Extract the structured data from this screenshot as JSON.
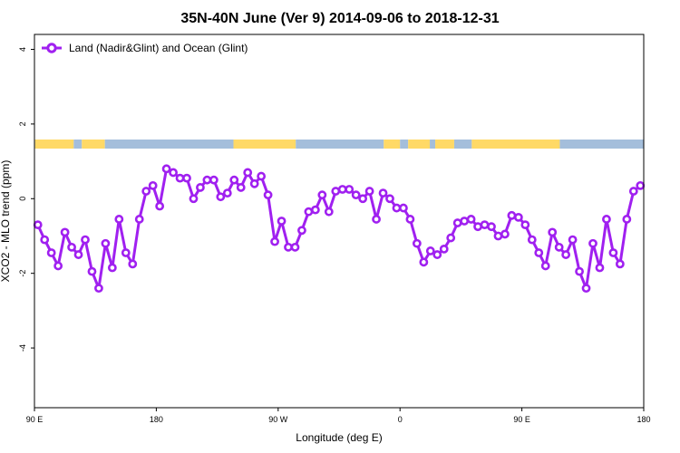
{
  "chart_data": {
    "type": "line",
    "title": "35N-40N June (Ver 9)   2014-09-06 to 2018-12-31",
    "xlabel": "Longitude (deg E)",
    "ylabel": "XCO2 - MLO trend (ppm)",
    "x_ticks": [
      {
        "value": 90,
        "label": "90 E"
      },
      {
        "value": 180,
        "label": "180"
      },
      {
        "value": 270,
        "label": "90 W"
      },
      {
        "value": 360,
        "label": "0"
      },
      {
        "value": 450,
        "label": "90 E"
      },
      {
        "value": 540,
        "label": "180"
      }
    ],
    "y_ticks": [
      {
        "value": 4,
        "label": "4"
      },
      {
        "value": 2,
        "label": "2"
      },
      {
        "value": 0,
        "label": "0"
      },
      {
        "value": -2,
        "label": "-2"
      },
      {
        "value": -4,
        "label": "-4"
      }
    ],
    "xlim": [
      90,
      540
    ],
    "ylim": [
      -5.6,
      4.4
    ],
    "grid": false,
    "legend_position": "top-left",
    "series": [
      {
        "name": "Land (Nadir&Glint) and Ocean (Glint)",
        "color": "#a020f0",
        "x": [
          92.5,
          97.5,
          102.5,
          107.5,
          112.5,
          117.5,
          122.5,
          127.5,
          132.5,
          137.5,
          142.5,
          147.5,
          152.5,
          157.5,
          162.5,
          167.5,
          172.5,
          177.5,
          182.5,
          187.5,
          192.5,
          197.5,
          202.5,
          207.5,
          212.5,
          217.5,
          222.5,
          227.5,
          232.5,
          237.5,
          242.5,
          247.5,
          252.5,
          257.5,
          262.5,
          267.5,
          272.5,
          277.5,
          282.5,
          287.5,
          292.5,
          297.5,
          302.5,
          307.5,
          312.5,
          317.5,
          322.5,
          327.5,
          332.5,
          337.5,
          342.5,
          347.5,
          352.5,
          357.5,
          362.5,
          367.5,
          372.5,
          377.5,
          382.5,
          387.5,
          392.5,
          397.5,
          402.5,
          407.5,
          412.5,
          417.5,
          422.5,
          427.5,
          432.5,
          437.5,
          442.5,
          447.5,
          452.5,
          457.5,
          462.5,
          467.5,
          472.5,
          477.5,
          482.5,
          487.5,
          492.5,
          497.5,
          502.5,
          507.5,
          512.5,
          517.5,
          522.5,
          527.5,
          532.5,
          537.5
        ],
        "y": [
          -0.7,
          -1.1,
          -1.45,
          -1.8,
          -0.9,
          -1.3,
          -1.5,
          -1.1,
          -1.95,
          -2.4,
          -1.2,
          -1.85,
          -0.55,
          -1.45,
          -1.75,
          -0.55,
          0.2,
          0.35,
          -0.2,
          0.8,
          0.7,
          0.55,
          0.55,
          0.0,
          0.3,
          0.5,
          0.5,
          0.05,
          0.15,
          0.5,
          0.3,
          0.7,
          0.4,
          0.6,
          0.1,
          -1.15,
          -0.6,
          -1.3,
          -1.3,
          -0.85,
          -0.35,
          -0.3,
          0.1,
          -0.35,
          0.2,
          0.25,
          0.25,
          0.1,
          0.0,
          0.2,
          -0.55,
          0.15,
          0.0,
          -0.25,
          -0.25,
          -0.55,
          -1.2,
          -1.7,
          -1.4,
          -1.5,
          -1.35,
          -1.05,
          -0.65,
          -0.6,
          -0.55,
          -0.75,
          -0.7,
          -0.75,
          -1.0,
          -0.95,
          -0.45,
          -0.5,
          -0.7,
          -1.1,
          -1.45,
          -1.8,
          -0.9,
          -1.3,
          -1.5,
          -1.1,
          -1.95,
          -2.4,
          -1.2,
          -1.85,
          -0.55,
          -1.45,
          -1.75,
          -0.55,
          0.2,
          0.35
        ]
      }
    ],
    "surface_strip": {
      "land_color": "#ffd966",
      "ocean_color": "#a4bedb",
      "segments": [
        {
          "type": "ocean",
          "from": 90,
          "to": 90.5
        },
        {
          "type": "land",
          "from": 90.5,
          "to": 119
        },
        {
          "type": "ocean",
          "from": 119,
          "to": 125
        },
        {
          "type": "land",
          "from": 125,
          "to": 142
        },
        {
          "type": "ocean",
          "from": 142,
          "to": 237
        },
        {
          "type": "land",
          "from": 237,
          "to": 283
        },
        {
          "type": "ocean",
          "from": 283,
          "to": 348
        },
        {
          "type": "land",
          "from": 348,
          "to": 360
        },
        {
          "type": "ocean",
          "from": 360,
          "to": 366
        },
        {
          "type": "land",
          "from": 366,
          "to": 382
        },
        {
          "type": "ocean",
          "from": 382,
          "to": 386
        },
        {
          "type": "land",
          "from": 386,
          "to": 400
        },
        {
          "type": "ocean",
          "from": 400,
          "to": 413
        },
        {
          "type": "land",
          "from": 413,
          "to": 478
        },
        {
          "type": "ocean",
          "from": 478,
          "to": 540
        }
      ]
    }
  }
}
